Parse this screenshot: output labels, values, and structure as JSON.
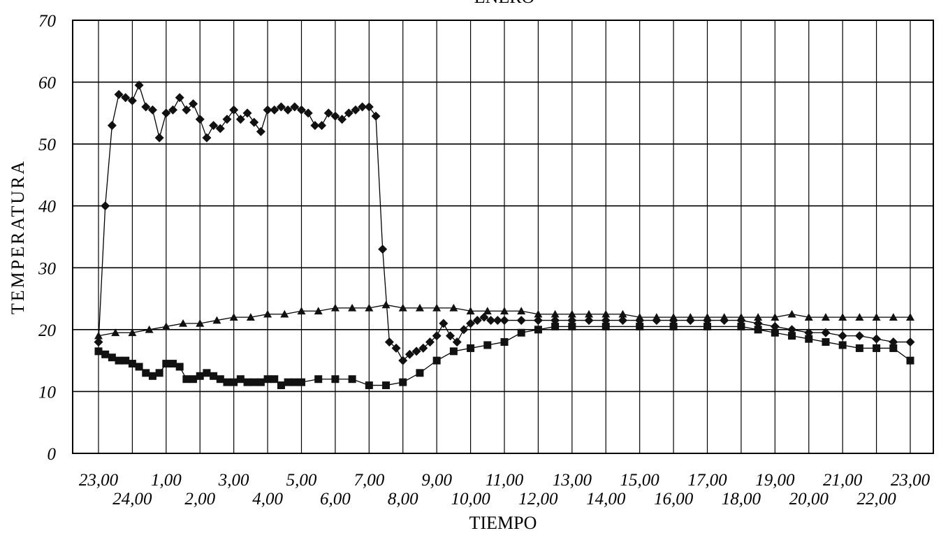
{
  "chart_data": {
    "type": "scatter",
    "title": "ENERO",
    "xlabel": "TIEMPO",
    "ylabel": "TEMPERATURA",
    "ylim": [
      0,
      70
    ],
    "yticks": [
      "0",
      "10",
      "20",
      "30",
      "40",
      "50",
      "60",
      "70"
    ],
    "xlim": [
      0,
      24
    ],
    "xticks_upper": [
      "23,00",
      "1,00",
      "3,00",
      "5,00",
      "7,00",
      "9,00",
      "11,00",
      "13,00",
      "15,00",
      "17,00",
      "19,00",
      "21,00",
      "23,00"
    ],
    "xticks_lower": [
      "24,00",
      "2,00",
      "4,00",
      "6,00",
      "8,00",
      "10,00",
      "12,00",
      "14,00",
      "16,00",
      "18,00",
      "20,00",
      "22,00"
    ],
    "grid": true,
    "legend": "none",
    "series": [
      {
        "marker": "diamond",
        "x": [
          0,
          0.2,
          0.4,
          0.6,
          0.8,
          1.0,
          1.2,
          1.4,
          1.6,
          1.8,
          2.0,
          2.2,
          2.4,
          2.6,
          2.8,
          3.0,
          3.2,
          3.4,
          3.6,
          3.8,
          4.0,
          4.2,
          4.4,
          4.6,
          4.8,
          5.0,
          5.2,
          5.4,
          5.6,
          5.8,
          6.0,
          6.2,
          6.4,
          6.6,
          6.8,
          7.0,
          7.2,
          7.4,
          7.6,
          7.8,
          8.0,
          8.2,
          8.4,
          8.6,
          8.8,
          9.0,
          9.2,
          9.4,
          9.6,
          9.8,
          10.0,
          10.2,
          10.4,
          10.6,
          10.8,
          11.0,
          11.2,
          11.4,
          11.6,
          11.8,
          12.0,
          12.5,
          13.0,
          13.5,
          14.0,
          14.5,
          15.0,
          15.5,
          16.0,
          16.5,
          17.0,
          17.5,
          18.0,
          18.5,
          19.0,
          19.5,
          20.0,
          20.5,
          21.0,
          21.5,
          22.0,
          22.5,
          23.0,
          23.5,
          24.0
        ],
        "y": [
          18,
          40,
          53,
          58,
          57.5,
          57,
          59.5,
          56,
          55.5,
          51,
          55,
          55.5,
          57.5,
          55.5,
          56.5,
          54,
          51,
          53,
          52.5,
          54,
          55.5,
          54,
          55,
          53.5,
          52,
          55.5,
          55.5,
          56,
          55.5,
          56,
          55.5,
          55,
          53,
          53,
          55,
          54.5,
          54,
          55,
          55.5,
          56,
          56,
          54.5,
          33,
          18,
          17,
          15,
          16,
          16.5,
          17,
          18,
          19,
          21,
          19,
          18,
          20,
          21,
          21.5,
          22,
          21.5,
          21.5,
          21.5,
          21.5,
          21.5,
          21.5,
          21.5,
          21.5,
          21.5,
          21.5,
          21.5,
          21.5,
          21.5,
          21.5,
          21.5,
          21.5,
          21.5,
          21,
          20.5,
          20,
          19.5,
          19.5,
          19,
          19,
          18.5,
          18,
          18
        ]
      },
      {
        "marker": "square",
        "x": [
          0,
          0.2,
          0.4,
          0.6,
          0.8,
          1.0,
          1.2,
          1.4,
          1.6,
          1.8,
          2.0,
          2.2,
          2.4,
          2.6,
          2.8,
          3.0,
          3.2,
          3.4,
          3.6,
          3.8,
          4.0,
          4.2,
          4.4,
          4.6,
          4.8,
          5.0,
          5.2,
          5.4,
          5.6,
          5.8,
          6.0,
          6.5,
          7.0,
          7.5,
          8.0,
          8.5,
          9.0,
          9.5,
          10.0,
          10.5,
          11.0,
          11.5,
          12.0,
          12.5,
          13.0,
          13.5,
          14.0,
          15.0,
          16.0,
          17.0,
          18.0,
          19.0,
          19.5,
          20.0,
          20.5,
          21.0,
          21.5,
          22.0,
          22.5,
          23.0,
          23.5,
          24.0
        ],
        "y": [
          16.5,
          16,
          15.5,
          15,
          15,
          14.5,
          14,
          13,
          12.5,
          13,
          14.5,
          14.5,
          14,
          12,
          12,
          12.5,
          13,
          12.5,
          12,
          11.5,
          11.5,
          12,
          11.5,
          11.5,
          11.5,
          12,
          12,
          11,
          11.5,
          11.5,
          11.5,
          12,
          12,
          12,
          11,
          11,
          11.5,
          13,
          15,
          16.5,
          17,
          17.5,
          18,
          19.5,
          20,
          20.5,
          20.5,
          20.5,
          20.5,
          20.5,
          20.5,
          20.5,
          20,
          19.5,
          19,
          18.5,
          18,
          17.5,
          17,
          17,
          17,
          15
        ]
      },
      {
        "marker": "triangle",
        "x": [
          0,
          0.5,
          1.0,
          1.5,
          2.0,
          2.5,
          3.0,
          3.5,
          4.0,
          4.5,
          5.0,
          5.5,
          6.0,
          6.5,
          7.0,
          7.5,
          8.0,
          8.5,
          9.0,
          9.5,
          10.0,
          10.5,
          11.0,
          11.5,
          12.0,
          12.5,
          13.0,
          13.5,
          14.0,
          14.5,
          15.0,
          15.5,
          16.0,
          16.5,
          17.0,
          17.5,
          18.0,
          18.5,
          19.0,
          19.5,
          20.0,
          20.5,
          21.0,
          21.5,
          22.0,
          22.5,
          23.0,
          23.5,
          24.0
        ],
        "y": [
          19,
          19.5,
          19.5,
          20,
          20.5,
          21,
          21,
          21.5,
          22,
          22,
          22.5,
          22.5,
          23,
          23,
          23.5,
          23.5,
          23.5,
          24,
          23.5,
          23.5,
          23.5,
          23.5,
          23,
          23,
          23,
          23,
          22.5,
          22.5,
          22.5,
          22.5,
          22.5,
          22.5,
          22,
          22,
          22,
          22,
          22,
          22,
          22,
          22,
          22,
          22.5,
          22,
          22,
          22,
          22,
          22,
          22,
          22
        ]
      }
    ]
  }
}
